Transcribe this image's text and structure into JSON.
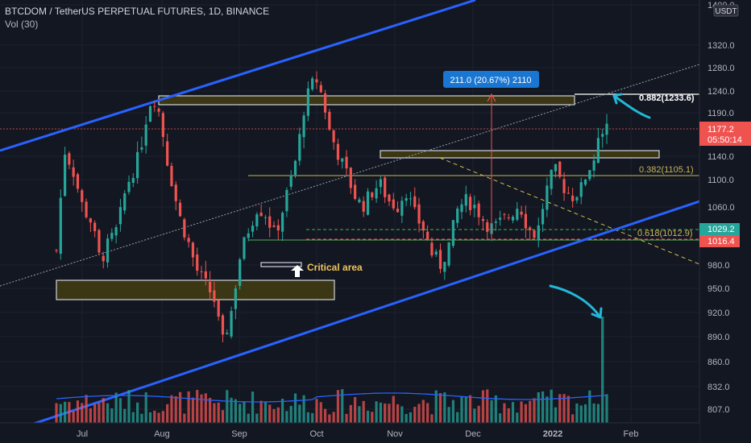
{
  "header": {
    "title": "BTCDOM / TetherUS PERPETUAL FUTURES, 1D, BINANCE",
    "volume_label": "Vol (30)"
  },
  "colors": {
    "background": "#131722",
    "grid": "#1e222d",
    "up": "#26a69a",
    "down": "#ef5350",
    "channel": "#2962ff",
    "zone_fill": "#3b3613",
    "zone_border": "#d1d4dc",
    "fib": "#c9b458",
    "green_dash": "#4caf50",
    "red_dash": "#ef5350",
    "measure": "#1976d2",
    "arrow": "#22b8d8",
    "axis_text": "#b2b5be",
    "volume_ma": "#2962ff",
    "annotation_text": "#f0c45a"
  },
  "chart_data": {
    "type": "candlestick",
    "y_axis": {
      "ticks": [
        1400.0,
        1320.0,
        1280.0,
        1240.0,
        1190.0,
        1140.0,
        1100.0,
        1060.0,
        980.0,
        950.0,
        920.0,
        890.0,
        860.0,
        832.0,
        807.0
      ],
      "tick_labels": [
        "1400.0",
        "1320.0",
        "1280.0",
        "1240.0",
        "1190.0",
        "1140.0",
        "1100.0",
        "1060.0",
        "980.0",
        "950.0",
        "920.0",
        "890.0",
        "860.0",
        "832.0",
        "807.0"
      ],
      "currency_badge": "USDT"
    },
    "x_axis": {
      "labels": [
        "Jul",
        "Aug",
        "Sep",
        "Oct",
        "Nov",
        "Dec",
        "2022",
        "Feb"
      ]
    },
    "price_labels": [
      {
        "value": "1177.2",
        "timer": "05:50:14",
        "color": "#ef5350"
      },
      {
        "value": "1029.2",
        "color": "#26a69a"
      },
      {
        "value": "1016.4",
        "color": "#ef5350"
      }
    ],
    "measure_label": "211.0 (20.67%) 2110",
    "fib_levels": [
      {
        "label": "0.882(1233.6)",
        "value": 1233.6
      },
      {
        "label": "0.382(1105.1)",
        "value": 1105.1
      },
      {
        "label": "0.618(1012.9)",
        "value": 1012.9
      }
    ],
    "critical_label": "Critical area",
    "series": [
      {
        "name": "BTCDOM",
        "kind": "price",
        "close_path": [
          1000,
          1150,
          1110,
          1060,
          1040,
          985,
          1010,
          1030,
          1090,
          1120,
          1170,
          1225,
          1180,
          1110,
          1050,
          1015,
          975,
          955,
          940,
          880,
          920,
          990,
          1030,
          1060,
          1050,
          1020,
          1060,
          1110,
          1170,
          1250,
          1260,
          1175,
          1150,
          1120,
          1080,
          1060,
          1080,
          1095,
          1070,
          1060,
          1085,
          1050,
          1030,
          995,
          980,
          1010,
          1060,
          1070,
          1060,
          1040,
          1030,
          1040,
          1050,
          1065,
          1030,
          1020,
          1080,
          1120,
          1090,
          1075,
          1085,
          1120,
          1150,
          1177.2
        ]
      },
      {
        "name": "Volume",
        "kind": "volume"
      }
    ]
  }
}
